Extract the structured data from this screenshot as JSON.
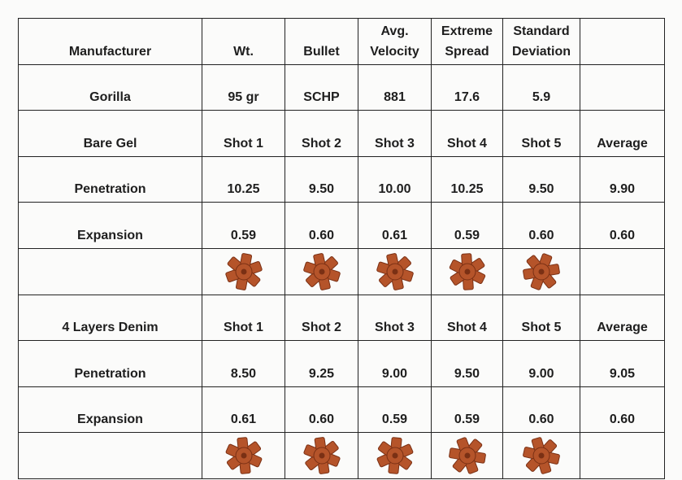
{
  "header": {
    "manufacturer": "Manufacturer",
    "weight": "Wt.",
    "bullet": "Bullet",
    "velocity_line1": "Avg.",
    "velocity_line2": "Velocity",
    "spread_line1": "Extreme",
    "spread_line2": "Spread",
    "deviation_line1": "Standard",
    "deviation_line2": "Deviation"
  },
  "load": {
    "manufacturer": "Gorilla",
    "weight": "95 gr",
    "bullet": "SCHP",
    "velocity": "881",
    "spread": "17.6",
    "deviation": "5.9"
  },
  "sections": [
    {
      "title": "Bare Gel",
      "columns": [
        "Shot 1",
        "Shot 2",
        "Shot 3",
        "Shot 4",
        "Shot 5",
        "Average"
      ],
      "penetration": {
        "label": "Penetration",
        "values": [
          "10.25",
          "9.50",
          "10.00",
          "10.25",
          "9.50",
          "9.90"
        ]
      },
      "expansion": {
        "label": "Expansion",
        "values": [
          "0.59",
          "0.60",
          "0.61",
          "0.59",
          "0.60",
          "0.60"
        ]
      }
    },
    {
      "title": "4 Layers Denim",
      "columns": [
        "Shot 1",
        "Shot 2",
        "Shot 3",
        "Shot 4",
        "Shot 5",
        "Average"
      ],
      "penetration": {
        "label": "Penetration",
        "values": [
          "8.50",
          "9.25",
          "9.00",
          "9.50",
          "9.00",
          "9.05"
        ]
      },
      "expansion": {
        "label": "Expansion",
        "values": [
          "0.61",
          "0.60",
          "0.59",
          "0.59",
          "0.60",
          "0.60"
        ]
      }
    }
  ],
  "colors": {
    "bullet_copper": "#b5542a",
    "bullet_dark": "#7a3014",
    "grid": "#222222"
  }
}
